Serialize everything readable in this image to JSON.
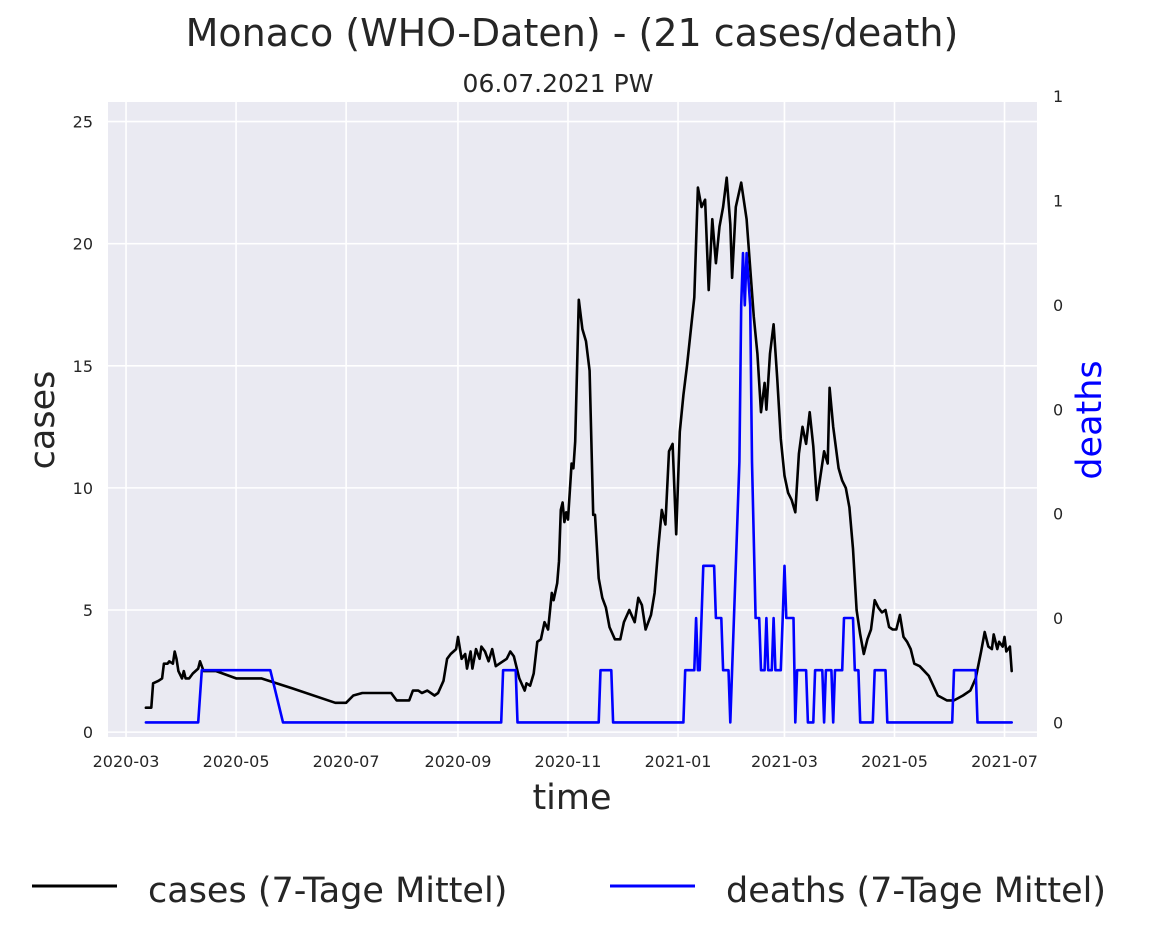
{
  "chart_data": {
    "type": "line",
    "title": "Monaco (WHO-Daten) - (21 cases/death)",
    "subtitle": "06.07.2021 PW",
    "xlabel": "time",
    "ylabel": "cases",
    "ylabel_right": "deaths",
    "x_ticks": [
      "2020-03",
      "2020-05",
      "2020-07",
      "2020-09",
      "2020-11",
      "2021-01",
      "2021-03",
      "2021-05",
      "2021-07"
    ],
    "y_ticks": [
      "0",
      "5",
      "10",
      "15",
      "20",
      "25"
    ],
    "y2_ticks": [
      "0",
      "0",
      "0",
      "0",
      "0",
      "1",
      "1"
    ],
    "ylim": [
      -0.2,
      25.8
    ],
    "y2lim": [
      -0.04,
      1.7
    ],
    "grid": true,
    "legend_position": "bottom-center",
    "series": [
      {
        "name": "cases (7-Tage Mittel)",
        "axis": "left",
        "color": "#000000",
        "points": [
          [
            "2020-03-12",
            1.0
          ],
          [
            "2020-03-15",
            1.0
          ],
          [
            "2020-03-16",
            2.0
          ],
          [
            "2020-03-19",
            2.1
          ],
          [
            "2020-03-21",
            2.2
          ],
          [
            "2020-03-22",
            2.8
          ],
          [
            "2020-03-24",
            2.8
          ],
          [
            "2020-03-25",
            2.9
          ],
          [
            "2020-03-27",
            2.8
          ],
          [
            "2020-03-28",
            3.3
          ],
          [
            "2020-03-29",
            3.0
          ],
          [
            "2020-03-30",
            2.5
          ],
          [
            "2020-04-01",
            2.2
          ],
          [
            "2020-04-02",
            2.5
          ],
          [
            "2020-04-03",
            2.2
          ],
          [
            "2020-04-05",
            2.2
          ],
          [
            "2020-04-07",
            2.4
          ],
          [
            "2020-04-10",
            2.6
          ],
          [
            "2020-04-11",
            2.9
          ],
          [
            "2020-04-13",
            2.5
          ],
          [
            "2020-04-20",
            2.5
          ],
          [
            "2020-05-01",
            2.2
          ],
          [
            "2020-05-15",
            2.2
          ],
          [
            "2020-06-01",
            1.8
          ],
          [
            "2020-06-25",
            1.2
          ],
          [
            "2020-07-01",
            1.2
          ],
          [
            "2020-07-05",
            1.5
          ],
          [
            "2020-07-10",
            1.6
          ],
          [
            "2020-07-26",
            1.6
          ],
          [
            "2020-07-29",
            1.3
          ],
          [
            "2020-08-05",
            1.3
          ],
          [
            "2020-08-07",
            1.7
          ],
          [
            "2020-08-10",
            1.7
          ],
          [
            "2020-08-12",
            1.6
          ],
          [
            "2020-08-15",
            1.7
          ],
          [
            "2020-08-19",
            1.5
          ],
          [
            "2020-08-21",
            1.6
          ],
          [
            "2020-08-24",
            2.1
          ],
          [
            "2020-08-26",
            3.0
          ],
          [
            "2020-08-28",
            3.2
          ],
          [
            "2020-08-31",
            3.4
          ],
          [
            "2020-09-01",
            3.9
          ],
          [
            "2020-09-03",
            3.0
          ],
          [
            "2020-09-05",
            3.2
          ],
          [
            "2020-09-06",
            2.6
          ],
          [
            "2020-09-08",
            3.3
          ],
          [
            "2020-09-09",
            2.6
          ],
          [
            "2020-09-11",
            3.4
          ],
          [
            "2020-09-13",
            3.0
          ],
          [
            "2020-09-14",
            3.5
          ],
          [
            "2020-09-16",
            3.3
          ],
          [
            "2020-09-18",
            2.9
          ],
          [
            "2020-09-20",
            3.4
          ],
          [
            "2020-09-22",
            2.7
          ],
          [
            "2020-09-24",
            2.8
          ],
          [
            "2020-09-28",
            3.0
          ],
          [
            "2020-09-30",
            3.3
          ],
          [
            "2020-10-02",
            3.1
          ],
          [
            "2020-10-05",
            2.2
          ],
          [
            "2020-10-08",
            1.7
          ],
          [
            "2020-10-09",
            2.0
          ],
          [
            "2020-10-11",
            1.9
          ],
          [
            "2020-10-13",
            2.4
          ],
          [
            "2020-10-15",
            3.7
          ],
          [
            "2020-10-17",
            3.8
          ],
          [
            "2020-10-19",
            4.5
          ],
          [
            "2020-10-21",
            4.2
          ],
          [
            "2020-10-23",
            5.7
          ],
          [
            "2020-10-24",
            5.4
          ],
          [
            "2020-10-26",
            6.1
          ],
          [
            "2020-10-27",
            7.0
          ],
          [
            "2020-10-28",
            9.1
          ],
          [
            "2020-10-29",
            9.4
          ],
          [
            "2020-10-30",
            8.6
          ],
          [
            "2020-10-31",
            9.0
          ],
          [
            "2020-11-01",
            8.7
          ],
          [
            "2020-11-03",
            11.0
          ],
          [
            "2020-11-04",
            10.8
          ],
          [
            "2020-11-05",
            11.9
          ],
          [
            "2020-11-07",
            17.7
          ],
          [
            "2020-11-09",
            16.5
          ],
          [
            "2020-11-11",
            16.0
          ],
          [
            "2020-11-13",
            14.8
          ],
          [
            "2020-11-15",
            8.9
          ],
          [
            "2020-11-16",
            8.9
          ],
          [
            "2020-11-18",
            6.3
          ],
          [
            "2020-11-20",
            5.5
          ],
          [
            "2020-11-22",
            5.1
          ],
          [
            "2020-11-24",
            4.3
          ],
          [
            "2020-11-27",
            3.8
          ],
          [
            "2020-11-30",
            3.8
          ],
          [
            "2020-12-02",
            4.5
          ],
          [
            "2020-12-05",
            5.0
          ],
          [
            "2020-12-08",
            4.5
          ],
          [
            "2020-12-10",
            5.5
          ],
          [
            "2020-12-12",
            5.2
          ],
          [
            "2020-12-14",
            4.2
          ],
          [
            "2020-12-17",
            4.8
          ],
          [
            "2020-12-19",
            5.7
          ],
          [
            "2020-12-21",
            7.5
          ],
          [
            "2020-12-23",
            9.1
          ],
          [
            "2020-12-25",
            8.5
          ],
          [
            "2020-12-27",
            11.5
          ],
          [
            "2020-12-29",
            11.8
          ],
          [
            "2020-12-31",
            8.1
          ],
          [
            "2021-01-02",
            12.3
          ],
          [
            "2021-01-04",
            13.8
          ],
          [
            "2021-01-06",
            15.0
          ],
          [
            "2021-01-10",
            17.8
          ],
          [
            "2021-01-12",
            22.3
          ],
          [
            "2021-01-14",
            21.5
          ],
          [
            "2021-01-16",
            21.8
          ],
          [
            "2021-01-18",
            18.1
          ],
          [
            "2021-01-20",
            21.0
          ],
          [
            "2021-01-22",
            19.2
          ],
          [
            "2021-01-24",
            20.7
          ],
          [
            "2021-01-26",
            21.5
          ],
          [
            "2021-01-28",
            22.7
          ],
          [
            "2021-01-30",
            20.8
          ],
          [
            "2021-01-31",
            18.6
          ],
          [
            "2021-02-02",
            21.5
          ],
          [
            "2021-02-05",
            22.5
          ],
          [
            "2021-02-08",
            21.0
          ],
          [
            "2021-02-12",
            17.0
          ],
          [
            "2021-02-14",
            15.5
          ],
          [
            "2021-02-16",
            13.1
          ],
          [
            "2021-02-18",
            14.3
          ],
          [
            "2021-02-19",
            13.2
          ],
          [
            "2021-02-21",
            15.5
          ],
          [
            "2021-02-23",
            16.7
          ],
          [
            "2021-02-25",
            14.5
          ],
          [
            "2021-02-27",
            12.0
          ],
          [
            "2021-03-01",
            10.5
          ],
          [
            "2021-03-03",
            9.8
          ],
          [
            "2021-03-05",
            9.5
          ],
          [
            "2021-03-07",
            9.0
          ],
          [
            "2021-03-09",
            11.4
          ],
          [
            "2021-03-11",
            12.5
          ],
          [
            "2021-03-13",
            11.8
          ],
          [
            "2021-03-15",
            13.1
          ],
          [
            "2021-03-17",
            11.7
          ],
          [
            "2021-03-19",
            9.5
          ],
          [
            "2021-03-21",
            10.5
          ],
          [
            "2021-03-23",
            11.5
          ],
          [
            "2021-03-25",
            11.0
          ],
          [
            "2021-03-26",
            14.1
          ],
          [
            "2021-03-28",
            12.5
          ],
          [
            "2021-03-31",
            10.8
          ],
          [
            "2021-04-02",
            10.3
          ],
          [
            "2021-04-04",
            10.0
          ],
          [
            "2021-04-06",
            9.2
          ],
          [
            "2021-04-08",
            7.5
          ],
          [
            "2021-04-10",
            5.0
          ],
          [
            "2021-04-12",
            4.0
          ],
          [
            "2021-04-14",
            3.2
          ],
          [
            "2021-04-16",
            3.8
          ],
          [
            "2021-04-18",
            4.2
          ],
          [
            "2021-04-20",
            5.4
          ],
          [
            "2021-04-22",
            5.1
          ],
          [
            "2021-04-24",
            4.9
          ],
          [
            "2021-04-26",
            5.0
          ],
          [
            "2021-04-28",
            4.3
          ],
          [
            "2021-04-30",
            4.2
          ],
          [
            "2021-05-02",
            4.2
          ],
          [
            "2021-05-04",
            4.8
          ],
          [
            "2021-05-06",
            3.9
          ],
          [
            "2021-05-08",
            3.7
          ],
          [
            "2021-05-10",
            3.4
          ],
          [
            "2021-05-12",
            2.8
          ],
          [
            "2021-05-15",
            2.7
          ],
          [
            "2021-05-20",
            2.3
          ],
          [
            "2021-05-25",
            1.5
          ],
          [
            "2021-05-30",
            1.3
          ],
          [
            "2021-06-03",
            1.3
          ],
          [
            "2021-06-08",
            1.5
          ],
          [
            "2021-06-12",
            1.7
          ],
          [
            "2021-06-15",
            2.2
          ],
          [
            "2021-06-18",
            3.3
          ],
          [
            "2021-06-20",
            4.1
          ],
          [
            "2021-06-22",
            3.5
          ],
          [
            "2021-06-24",
            3.4
          ],
          [
            "2021-06-25",
            4.0
          ],
          [
            "2021-06-27",
            3.4
          ],
          [
            "2021-06-28",
            3.7
          ],
          [
            "2021-06-30",
            3.5
          ],
          [
            "2021-07-01",
            3.9
          ],
          [
            "2021-07-02",
            3.3
          ],
          [
            "2021-07-04",
            3.5
          ],
          [
            "2021-07-05",
            2.5
          ]
        ]
      },
      {
        "name": "deaths (7-Tage Mittel)",
        "axis": "right",
        "color": "#0000ff",
        "points": [
          [
            "2020-03-12",
            0.0
          ],
          [
            "2020-04-10",
            0.0
          ],
          [
            "2020-04-12",
            0.143
          ],
          [
            "2020-05-20",
            0.143
          ],
          [
            "2020-05-27",
            0.0
          ],
          [
            "2020-09-25",
            0.0
          ],
          [
            "2020-09-26",
            0.143
          ],
          [
            "2020-10-03",
            0.143
          ],
          [
            "2020-10-04",
            0.0
          ],
          [
            "2020-11-18",
            0.0
          ],
          [
            "2020-11-19",
            0.143
          ],
          [
            "2020-11-25",
            0.143
          ],
          [
            "2020-11-26",
            0.0
          ],
          [
            "2021-01-04",
            0.0
          ],
          [
            "2021-01-05",
            0.143
          ],
          [
            "2021-01-10",
            0.143
          ],
          [
            "2021-01-11",
            0.286
          ],
          [
            "2021-01-12",
            0.143
          ],
          [
            "2021-01-13",
            0.143
          ],
          [
            "2021-01-14",
            0.286
          ],
          [
            "2021-01-15",
            0.429
          ],
          [
            "2021-01-21",
            0.429
          ],
          [
            "2021-01-22",
            0.286
          ],
          [
            "2021-01-25",
            0.286
          ],
          [
            "2021-01-26",
            0.143
          ],
          [
            "2021-01-29",
            0.143
          ],
          [
            "2021-01-30",
            0.0
          ],
          [
            "2021-01-31",
            0.143
          ],
          [
            "2021-02-02",
            0.429
          ],
          [
            "2021-02-04",
            0.714
          ],
          [
            "2021-02-05",
            1.143
          ],
          [
            "2021-02-06",
            1.286
          ],
          [
            "2021-02-07",
            1.143
          ],
          [
            "2021-02-08",
            1.286
          ],
          [
            "2021-02-10",
            1.143
          ],
          [
            "2021-02-11",
            0.714
          ],
          [
            "2021-02-13",
            0.286
          ],
          [
            "2021-02-15",
            0.286
          ],
          [
            "2021-02-16",
            0.143
          ],
          [
            "2021-02-18",
            0.143
          ],
          [
            "2021-02-19",
            0.286
          ],
          [
            "2021-02-20",
            0.143
          ],
          [
            "2021-02-22",
            0.143
          ],
          [
            "2021-02-23",
            0.286
          ],
          [
            "2021-02-24",
            0.143
          ],
          [
            "2021-02-27",
            0.143
          ],
          [
            "2021-02-28",
            0.286
          ],
          [
            "2021-03-01",
            0.429
          ],
          [
            "2021-03-02",
            0.286
          ],
          [
            "2021-03-06",
            0.286
          ],
          [
            "2021-03-07",
            0.0
          ],
          [
            "2021-03-08",
            0.143
          ],
          [
            "2021-03-13",
            0.143
          ],
          [
            "2021-03-14",
            0.0
          ],
          [
            "2021-03-17",
            0.0
          ],
          [
            "2021-03-18",
            0.143
          ],
          [
            "2021-03-22",
            0.143
          ],
          [
            "2021-03-23",
            0.0
          ],
          [
            "2021-03-24",
            0.143
          ],
          [
            "2021-03-27",
            0.143
          ],
          [
            "2021-03-28",
            0.0
          ],
          [
            "2021-03-29",
            0.143
          ],
          [
            "2021-04-02",
            0.143
          ],
          [
            "2021-04-03",
            0.286
          ],
          [
            "2021-04-08",
            0.286
          ],
          [
            "2021-04-09",
            0.143
          ],
          [
            "2021-04-11",
            0.143
          ],
          [
            "2021-04-12",
            0.0
          ],
          [
            "2021-04-19",
            0.0
          ],
          [
            "2021-04-20",
            0.143
          ],
          [
            "2021-04-26",
            0.143
          ],
          [
            "2021-04-27",
            0.0
          ],
          [
            "2021-06-02",
            0.0
          ],
          [
            "2021-06-03",
            0.143
          ],
          [
            "2021-06-15",
            0.143
          ],
          [
            "2021-06-16",
            0.0
          ],
          [
            "2021-07-05",
            0.0
          ]
        ]
      }
    ]
  }
}
